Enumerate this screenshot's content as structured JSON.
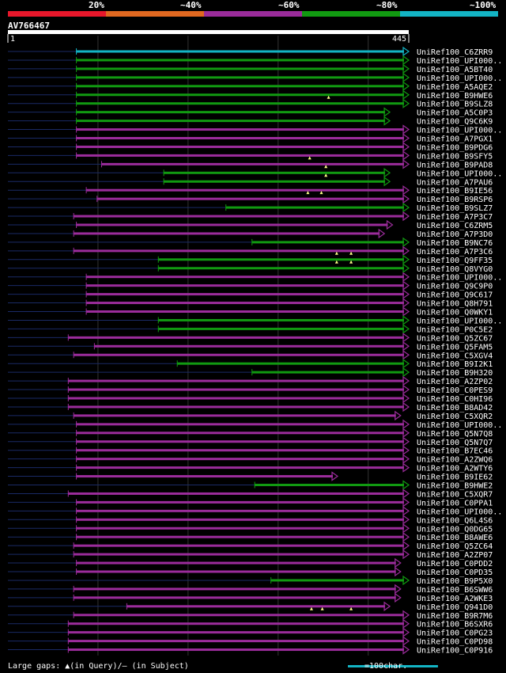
{
  "legend": {
    "colors": [
      "#e8172b",
      "#e06820",
      "#9b2c9b",
      "#119a11",
      "#13b4c4"
    ],
    "labels": [
      "20%",
      "~40%",
      "~60%",
      "~80%",
      "~100%"
    ]
  },
  "query": {
    "name": "AV766467",
    "start": "1",
    "end": "445"
  },
  "footer": {
    "gaps_text": "Large gaps: ▲(in Query)/— (in Subject)",
    "scale_text": "=100char."
  },
  "chart_data": {
    "type": "alignment",
    "query_length": 445,
    "hits": [
      {
        "name": "UniRef100_C6ZRR9",
        "start": 76,
        "end": 445,
        "color": "#13b4c4",
        "arrow": true
      },
      {
        "name": "UniRef100_UPI000..",
        "start": 76,
        "end": 445,
        "color": "#119a11",
        "arrow": true
      },
      {
        "name": "UniRef100_A5BT40",
        "start": 76,
        "end": 445,
        "color": "#119a11",
        "arrow": true
      },
      {
        "name": "UniRef100_UPI000..",
        "start": 76,
        "end": 445,
        "color": "#119a11",
        "arrow": true
      },
      {
        "name": "UniRef100_A5AQE2",
        "start": 76,
        "end": 445,
        "color": "#119a11",
        "arrow": true
      },
      {
        "name": "UniRef100_B9HWE6",
        "start": 76,
        "end": 445,
        "color": "#119a11",
        "arrow": true
      },
      {
        "name": "UniRef100_B9SLZ8",
        "start": 76,
        "end": 445,
        "color": "#119a11",
        "arrow": true,
        "gaps": [
          356
        ]
      },
      {
        "name": "UniRef100_A5C0P3",
        "start": 76,
        "end": 424,
        "color": "#119a11",
        "arrow": true
      },
      {
        "name": "UniRef100_Q9C6K9",
        "start": 76,
        "end": 424,
        "color": "#119a11",
        "arrow": true
      },
      {
        "name": "UniRef100_UPI000..",
        "start": 76,
        "end": 445,
        "color": "#9b2c9b",
        "arrow": true
      },
      {
        "name": "UniRef100_A7PGX1",
        "start": 76,
        "end": 445,
        "color": "#9b2c9b",
        "arrow": true
      },
      {
        "name": "UniRef100_B9PDG6",
        "start": 76,
        "end": 445,
        "color": "#9b2c9b",
        "arrow": true
      },
      {
        "name": "UniRef100_B9SFY5",
        "start": 76,
        "end": 445,
        "color": "#9b2c9b",
        "arrow": true
      },
      {
        "name": "UniRef100_B9PAD8",
        "start": 104,
        "end": 445,
        "color": "#9b2c9b",
        "arrow": true,
        "gaps": [
          335
        ]
      },
      {
        "name": "UniRef100_UPI000..",
        "start": 173,
        "end": 424,
        "color": "#119a11",
        "arrow": true,
        "gaps": [
          353
        ]
      },
      {
        "name": "UniRef100_A7PAU6",
        "start": 173,
        "end": 424,
        "color": "#119a11",
        "arrow": true,
        "gaps": [
          353
        ]
      },
      {
        "name": "UniRef100_B9IE56",
        "start": 87,
        "end": 445,
        "color": "#9b2c9b",
        "arrow": true
      },
      {
        "name": "UniRef100_B9RSP6",
        "start": 99,
        "end": 445,
        "color": "#9b2c9b",
        "arrow": true,
        "gaps": [
          333,
          348
        ]
      },
      {
        "name": "UniRef100_B9SLZ7",
        "start": 242,
        "end": 445,
        "color": "#119a11",
        "arrow": true
      },
      {
        "name": "UniRef100_A7P3C7",
        "start": 73,
        "end": 445,
        "color": "#9b2c9b",
        "arrow": true
      },
      {
        "name": "UniRef100_C6ZRM5",
        "start": 76,
        "end": 427,
        "color": "#9b2c9b",
        "arrow": true
      },
      {
        "name": "UniRef100_A7P3D0",
        "start": 73,
        "end": 418,
        "color": "#9b2c9b",
        "arrow": true
      },
      {
        "name": "UniRef100_B9NC76",
        "start": 271,
        "end": 445,
        "color": "#119a11",
        "arrow": true
      },
      {
        "name": "UniRef100_A7P3C6",
        "start": 73,
        "end": 445,
        "color": "#9b2c9b",
        "arrow": true
      },
      {
        "name": "UniRef100_Q9FF35",
        "start": 167,
        "end": 445,
        "color": "#119a11",
        "arrow": true,
        "gaps": [
          365,
          381
        ]
      },
      {
        "name": "UniRef100_Q8VYG0",
        "start": 167,
        "end": 445,
        "color": "#119a11",
        "arrow": true,
        "gaps": [
          365,
          381
        ]
      },
      {
        "name": "UniRef100_UPI000..",
        "start": 87,
        "end": 445,
        "color": "#9b2c9b",
        "arrow": true
      },
      {
        "name": "UniRef100_Q9C9P0",
        "start": 87,
        "end": 445,
        "color": "#9b2c9b",
        "arrow": true
      },
      {
        "name": "UniRef100_Q9C617",
        "start": 87,
        "end": 445,
        "color": "#9b2c9b",
        "arrow": true
      },
      {
        "name": "UniRef100_Q8H791",
        "start": 87,
        "end": 445,
        "color": "#9b2c9b",
        "arrow": true
      },
      {
        "name": "UniRef100_Q0WKY1",
        "start": 87,
        "end": 445,
        "color": "#9b2c9b",
        "arrow": true
      },
      {
        "name": "UniRef100_UPI000..",
        "start": 167,
        "end": 445,
        "color": "#119a11",
        "arrow": true
      },
      {
        "name": "UniRef100_P0C5E2",
        "start": 167,
        "end": 445,
        "color": "#119a11",
        "arrow": true
      },
      {
        "name": "UniRef100_Q5ZC67",
        "start": 67,
        "end": 445,
        "color": "#9b2c9b",
        "arrow": true
      },
      {
        "name": "UniRef100_Q5FAM5",
        "start": 96,
        "end": 445,
        "color": "#9b2c9b",
        "arrow": true
      },
      {
        "name": "UniRef100_C5XGV4",
        "start": 73,
        "end": 445,
        "color": "#9b2c9b",
        "arrow": true
      },
      {
        "name": "UniRef100_B9I2K1",
        "start": 188,
        "end": 445,
        "color": "#119a11",
        "arrow": true
      },
      {
        "name": "UniRef100_B9H320",
        "start": 271,
        "end": 445,
        "color": "#119a11",
        "arrow": true
      },
      {
        "name": "UniRef100_A2ZP02",
        "start": 67,
        "end": 445,
        "color": "#9b2c9b",
        "arrow": true
      },
      {
        "name": "UniRef100_C0PES9",
        "start": 67,
        "end": 445,
        "color": "#9b2c9b",
        "arrow": true
      },
      {
        "name": "UniRef100_C0HI96",
        "start": 67,
        "end": 445,
        "color": "#9b2c9b",
        "arrow": true
      },
      {
        "name": "UniRef100_B8AD42",
        "start": 67,
        "end": 445,
        "color": "#9b2c9b",
        "arrow": true
      },
      {
        "name": "UniRef100_C5XQR2",
        "start": 73,
        "end": 436,
        "color": "#9b2c9b",
        "arrow": true
      },
      {
        "name": "UniRef100_UPI000..",
        "start": 76,
        "end": 445,
        "color": "#9b2c9b",
        "arrow": true
      },
      {
        "name": "UniRef100_Q5N7Q8",
        "start": 76,
        "end": 445,
        "color": "#9b2c9b",
        "arrow": true
      },
      {
        "name": "UniRef100_Q5N7Q7",
        "start": 76,
        "end": 445,
        "color": "#9b2c9b",
        "arrow": true
      },
      {
        "name": "UniRef100_B7EC46",
        "start": 76,
        "end": 445,
        "color": "#9b2c9b",
        "arrow": true
      },
      {
        "name": "UniRef100_A2ZWQ6",
        "start": 76,
        "end": 445,
        "color": "#9b2c9b",
        "arrow": true
      },
      {
        "name": "UniRef100_A2WTY6",
        "start": 76,
        "end": 445,
        "color": "#9b2c9b",
        "arrow": true
      },
      {
        "name": "UniRef100_B9IE62",
        "start": 76,
        "end": 366,
        "color": "#9b2c9b",
        "arrow": true
      },
      {
        "name": "UniRef100_B9HWE2",
        "start": 274,
        "end": 445,
        "color": "#119a11",
        "arrow": true
      },
      {
        "name": "UniRef100_C5XQR7",
        "start": 67,
        "end": 445,
        "color": "#9b2c9b",
        "arrow": true
      },
      {
        "name": "UniRef100_C0PPA1",
        "start": 76,
        "end": 445,
        "color": "#9b2c9b",
        "arrow": true
      },
      {
        "name": "UniRef100_UPI000..",
        "start": 76,
        "end": 445,
        "color": "#9b2c9b",
        "arrow": true
      },
      {
        "name": "UniRef100_Q6L4S6",
        "start": 76,
        "end": 445,
        "color": "#9b2c9b",
        "arrow": true
      },
      {
        "name": "UniRef100_Q0DG65",
        "start": 76,
        "end": 445,
        "color": "#9b2c9b",
        "arrow": true
      },
      {
        "name": "UniRef100_B8AWE6",
        "start": 76,
        "end": 445,
        "color": "#9b2c9b",
        "arrow": true
      },
      {
        "name": "UniRef100_Q5ZC64",
        "start": 73,
        "end": 445,
        "color": "#9b2c9b",
        "arrow": true
      },
      {
        "name": "UniRef100_A2ZP07",
        "start": 73,
        "end": 445,
        "color": "#9b2c9b",
        "arrow": true
      },
      {
        "name": "UniRef100_C0PDD2",
        "start": 76,
        "end": 436,
        "color": "#9b2c9b",
        "arrow": true
      },
      {
        "name": "UniRef100_C0PD35",
        "start": 76,
        "end": 436,
        "color": "#9b2c9b",
        "arrow": true
      },
      {
        "name": "UniRef100_B9P5X0",
        "start": 292,
        "end": 445,
        "color": "#119a11",
        "arrow": true
      },
      {
        "name": "UniRef100_B6SWW6",
        "start": 73,
        "end": 436,
        "color": "#9b2c9b",
        "arrow": true
      },
      {
        "name": "UniRef100_A2WKE3",
        "start": 73,
        "end": 436,
        "color": "#9b2c9b",
        "arrow": true
      },
      {
        "name": "UniRef100_Q941D0",
        "start": 132,
        "end": 424,
        "color": "#9b2c9b",
        "arrow": true
      },
      {
        "name": "UniRef100_B9R7M6",
        "start": 73,
        "end": 445,
        "color": "#9b2c9b",
        "arrow": true,
        "gaps": [
          337,
          349,
          381
        ]
      },
      {
        "name": "UniRef100_B6SXR6",
        "start": 67,
        "end": 445,
        "color": "#9b2c9b",
        "arrow": true
      },
      {
        "name": "UniRef100_C0PG23",
        "start": 67,
        "end": 445,
        "color": "#9b2c9b",
        "arrow": true
      },
      {
        "name": "UniRef100_C0PD98",
        "start": 67,
        "end": 445,
        "color": "#9b2c9b",
        "arrow": true
      },
      {
        "name": "UniRef100_C0P916",
        "start": 67,
        "end": 445,
        "color": "#9b2c9b",
        "arrow": true
      }
    ]
  }
}
